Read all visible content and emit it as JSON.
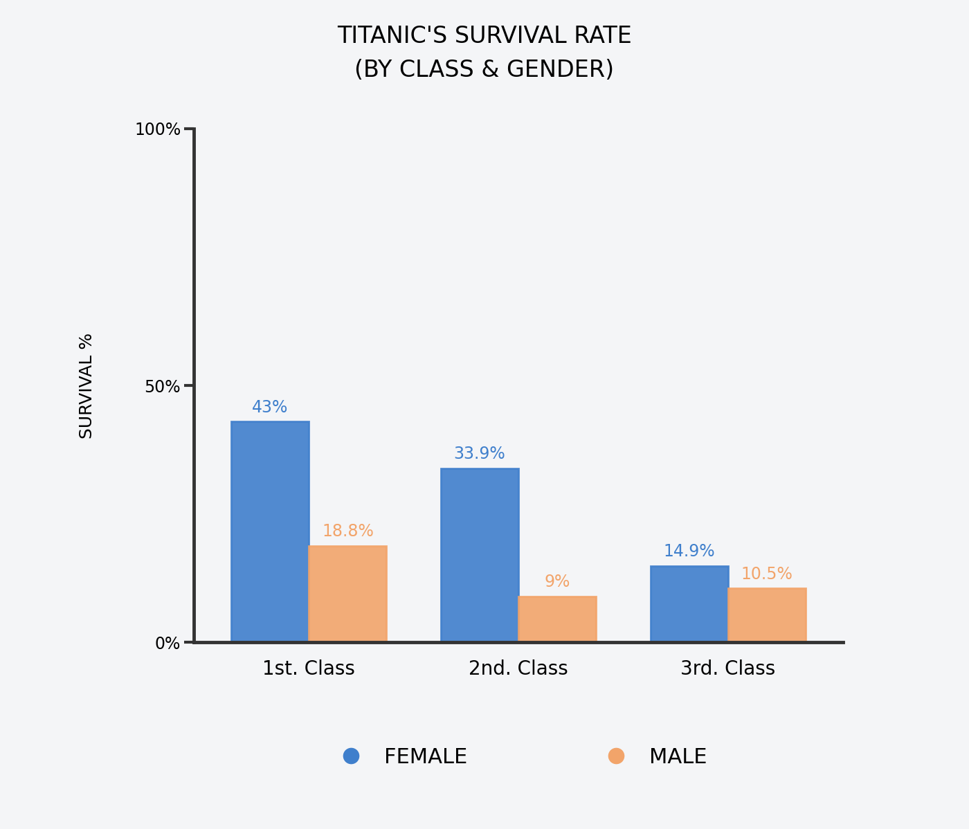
{
  "chart_data": {
    "type": "bar",
    "title": "TITANIC'S SURVIVAL RATE\n(BY CLASS & GENDER)",
    "y_label": "SURVIVAL %",
    "categories": [
      "1st. Class",
      "2nd. Class",
      "3rd. Class"
    ],
    "series": [
      {
        "name": "FEMALE",
        "color": "#3f7fcc",
        "values": [
          43,
          33.9,
          14.9
        ],
        "value_labels": [
          "43%",
          "33.9%",
          "14.9%"
        ]
      },
      {
        "name": "MALE",
        "color": "#f2a46a",
        "values": [
          18.8,
          9,
          10.5
        ],
        "value_labels": [
          "18.8%",
          "9%",
          "10.5%"
        ]
      }
    ],
    "ylim": [
      0,
      100
    ],
    "yticks": [
      {
        "value": 0,
        "label": "0%"
      },
      {
        "value": 50,
        "label": "50%"
      },
      {
        "value": 100,
        "label": "100%"
      }
    ],
    "grid": false,
    "data_labels": true,
    "legend": "lower center"
  }
}
